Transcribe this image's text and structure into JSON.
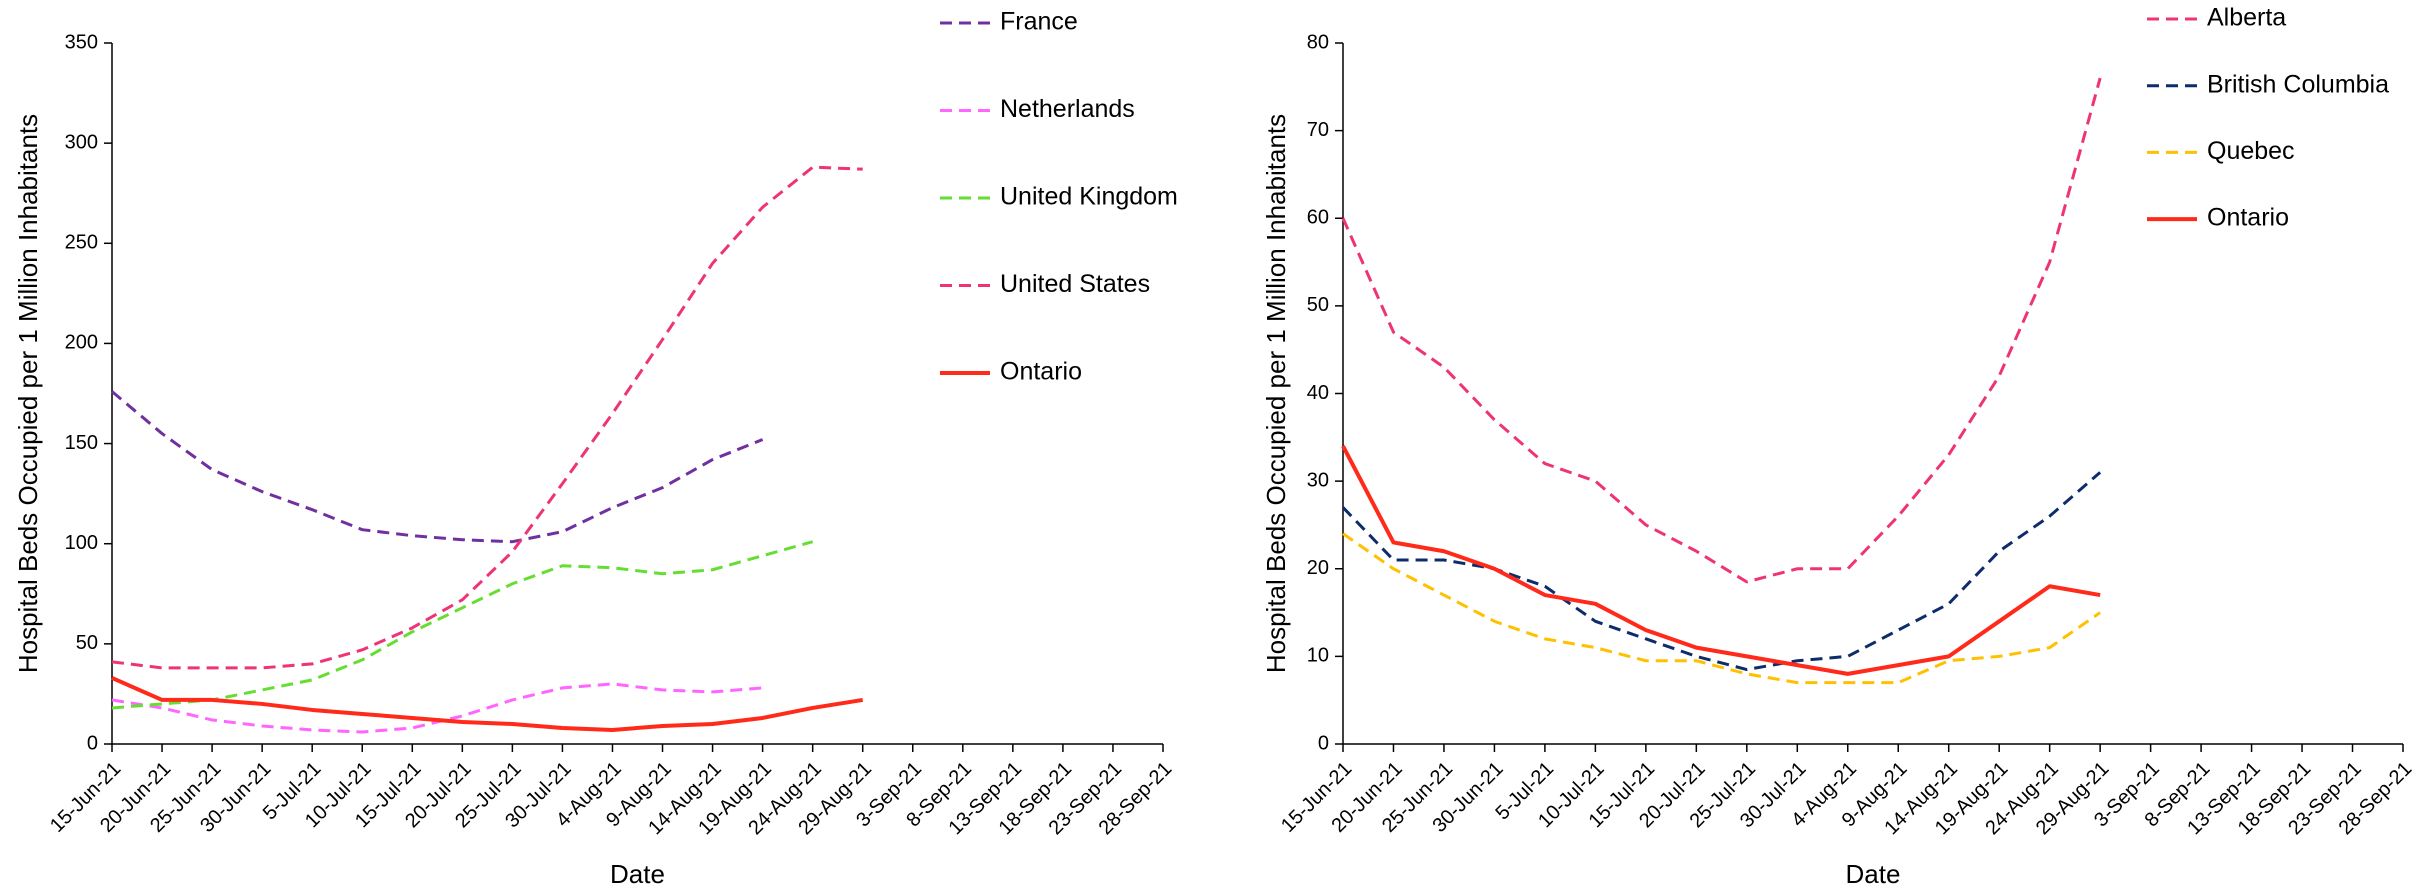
{
  "chart_data": [
    {
      "type": "line",
      "x_label": "Date",
      "y_label": "Hospital Beds Occupied per 1 Million Inhabitants",
      "categories": [
        "15-Jun-21",
        "20-Jun-21",
        "25-Jun-21",
        "30-Jun-21",
        "5-Jul-21",
        "10-Jul-21",
        "15-Jul-21",
        "20-Jul-21",
        "25-Jul-21",
        "30-Jul-21",
        "4-Aug-21",
        "9-Aug-21",
        "14-Aug-21",
        "19-Aug-21",
        "24-Aug-21",
        "29-Aug-21",
        "3-Sep-21",
        "8-Sep-21",
        "13-Sep-21",
        "18-Sep-21",
        "23-Sep-21",
        "28-Sep-21"
      ],
      "ylim": [
        0,
        350
      ],
      "yticks": [
        0,
        50,
        100,
        150,
        200,
        250,
        300,
        350
      ],
      "series": [
        {
          "name": "France",
          "color": "#7030a0",
          "style": "dashed",
          "values": [
            176,
            155,
            137,
            126,
            117,
            107,
            104,
            102,
            101,
            106,
            118,
            128,
            142,
            152,
            null,
            null,
            null,
            null,
            null,
            null,
            null,
            null
          ]
        },
        {
          "name": "Netherlands",
          "color": "#ff66ff",
          "style": "dashed",
          "values": [
            22,
            18,
            12,
            9,
            7,
            6,
            8,
            14,
            22,
            28,
            30,
            27,
            26,
            28,
            null,
            null,
            null,
            null,
            null,
            null,
            null,
            null
          ]
        },
        {
          "name": "United Kingdom",
          "color": "#66dd33",
          "style": "dashed",
          "values": [
            18,
            20,
            22,
            27,
            32,
            42,
            56,
            68,
            80,
            89,
            88,
            85,
            87,
            94,
            101,
            null,
            null,
            null,
            null,
            null,
            null,
            null
          ]
        },
        {
          "name": "United States",
          "color": "#ee3377",
          "style": "dashed",
          "values": [
            41,
            38,
            38,
            38,
            40,
            47,
            58,
            72,
            96,
            130,
            165,
            202,
            240,
            268,
            288,
            287,
            null,
            null,
            null,
            null,
            null,
            null
          ]
        },
        {
          "name": "Ontario",
          "color": "#ff2a1a",
          "style": "solid",
          "values": [
            33,
            22,
            22,
            20,
            17,
            15,
            13,
            11,
            10,
            8,
            7,
            9,
            10,
            13,
            18,
            22,
            null,
            null,
            null,
            null,
            null,
            null
          ]
        }
      ]
    },
    {
      "type": "line",
      "x_label": "Date",
      "y_label": "Hospital Beds Occupied per 1 Million Inhabitants",
      "categories": [
        "15-Jun-21",
        "20-Jun-21",
        "25-Jun-21",
        "30-Jun-21",
        "5-Jul-21",
        "10-Jul-21",
        "15-Jul-21",
        "20-Jul-21",
        "25-Jul-21",
        "30-Jul-21",
        "4-Aug-21",
        "9-Aug-21",
        "14-Aug-21",
        "19-Aug-21",
        "24-Aug-21",
        "29-Aug-21",
        "3-Sep-21",
        "8-Sep-21",
        "13-Sep-21",
        "18-Sep-21",
        "23-Sep-21",
        "28-Sep-21"
      ],
      "ylim": [
        0,
        80
      ],
      "yticks": [
        0,
        10,
        20,
        30,
        40,
        50,
        60,
        70,
        80
      ],
      "series": [
        {
          "name": "Alberta",
          "color": "#ee3377",
          "style": "dashed",
          "values": [
            60,
            47,
            43,
            37,
            32,
            30,
            25,
            22,
            18.5,
            20,
            20,
            26,
            33,
            42,
            55,
            76,
            null,
            null,
            null,
            null,
            null,
            null
          ]
        },
        {
          "name": "British Columbia",
          "color": "#0d2c6c",
          "style": "dashed",
          "values": [
            27,
            21,
            21,
            20,
            18,
            14,
            12,
            10,
            8.5,
            9.5,
            10,
            13,
            16,
            22,
            26,
            31,
            null,
            null,
            null,
            null,
            null,
            null
          ]
        },
        {
          "name": "Quebec",
          "color": "#ffc000",
          "style": "dashed",
          "values": [
            24,
            20,
            17,
            14,
            12,
            11,
            9.5,
            9.5,
            8,
            7,
            7,
            7,
            9.5,
            10,
            11,
            15,
            null,
            null,
            null,
            null,
            null,
            null
          ]
        },
        {
          "name": "Ontario",
          "color": "#ff2a1a",
          "style": "solid",
          "values": [
            34,
            23,
            22,
            20,
            17,
            16,
            13,
            11,
            10,
            9,
            8,
            9,
            10,
            14,
            18,
            17,
            null,
            null,
            null,
            null,
            null,
            null
          ]
        }
      ]
    }
  ]
}
